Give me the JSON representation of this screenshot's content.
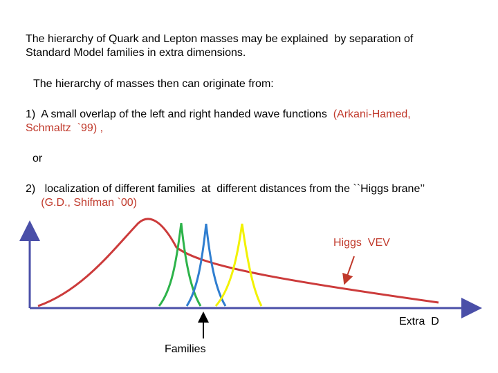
{
  "text": {
    "intro_line1": "The hierarchy of Quark and Lepton masses may be explained  by separation of",
    "intro_line2": "Standard Model families in extra dimensions.",
    "origin": "The hierarchy of masses then can originate from:",
    "item1_line1_a": "1)  A small overlap of the left and right handed wave functions  ",
    "item1_line1_b": "(Arkani-Hamed,",
    "item1_line2": "Schmaltz  `99) ,",
    "or": "or",
    "item2_line1": "2)   localization of different families  at  different distances from the ``Higgs brane’’",
    "item2_line2": "(G.D., Shifman `00)"
  },
  "diagram": {
    "higgs_label": "Higgs  VEV",
    "x_axis_label": "Extra  D",
    "families_label": "Families"
  },
  "colors": {
    "axis": "#4a4fa8",
    "text_red": "#c0392b",
    "higgs_curve": "#cc3b3b",
    "family_green": "#2db34a",
    "family_blue": "#2f7ed0",
    "family_yellow": "#f2f200",
    "arrow_red": "#c0392b",
    "arrow_black": "#000000"
  }
}
